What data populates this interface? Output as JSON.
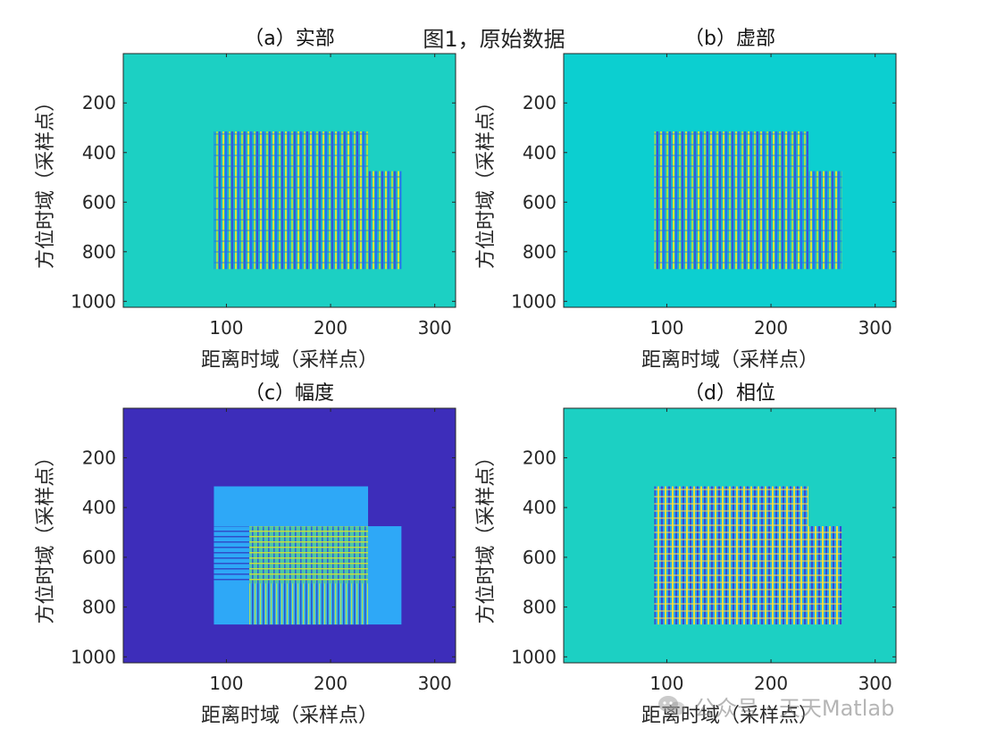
{
  "figure": {
    "suptitle": "图1，原始数据",
    "watermark": "公众号 · 天天Matlab"
  },
  "colors": {
    "bg_real": "#1cd0c3",
    "bg_imag": "#0ccfd0",
    "bg_amp": "#3d2dba",
    "amp_block": "#2ea8f7",
    "phase_bg": "#1cd0c3",
    "axis": "#262626"
  },
  "chart_data": [
    {
      "type": "heatmap",
      "title": "（a）实部",
      "xlabel": "距离时域（采样点）",
      "ylabel": "方位时域（采样点）",
      "xlim": [
        1,
        320
      ],
      "ylim": [
        1,
        1024
      ],
      "xticks": [
        100,
        200,
        300
      ],
      "yticks": [
        200,
        400,
        600,
        800,
        1000
      ],
      "y_reversed": true,
      "colormap": "parula",
      "regions": [
        {
          "x": [
            88,
            236
          ],
          "y": [
            315,
            475
          ],
          "pattern": "fringe"
        },
        {
          "x": [
            88,
            268
          ],
          "y": [
            475,
            870
          ],
          "pattern": "fringe"
        }
      ]
    },
    {
      "type": "heatmap",
      "title": "（b）虚部",
      "xlabel": "距离时域（采样点）",
      "ylabel": "方位时域（采样点）",
      "xlim": [
        1,
        320
      ],
      "ylim": [
        1,
        1024
      ],
      "xticks": [
        100,
        200,
        300
      ],
      "yticks": [
        200,
        400,
        600,
        800,
        1000
      ],
      "y_reversed": true,
      "colormap": "parula",
      "regions": [
        {
          "x": [
            88,
            236
          ],
          "y": [
            315,
            475
          ],
          "pattern": "fringe"
        },
        {
          "x": [
            88,
            268
          ],
          "y": [
            475,
            870
          ],
          "pattern": "fringe"
        }
      ]
    },
    {
      "type": "heatmap",
      "title": "（c）幅度",
      "xlabel": "距离时域（采样点）",
      "ylabel": "方位时域（采样点）",
      "xlim": [
        1,
        320
      ],
      "ylim": [
        1,
        1024
      ],
      "xticks": [
        100,
        200,
        300
      ],
      "yticks": [
        200,
        400,
        600,
        800,
        1000
      ],
      "y_reversed": true,
      "colormap": "parula",
      "regions": [
        {
          "x": [
            88,
            236
          ],
          "y": [
            315,
            475
          ],
          "pattern": "solid"
        },
        {
          "x": [
            88,
            268
          ],
          "y": [
            475,
            870
          ],
          "pattern": "solid"
        },
        {
          "x": [
            88,
            122
          ],
          "y": [
            475,
            705
          ],
          "pattern": "hstripes"
        },
        {
          "x": [
            122,
            236
          ],
          "y": [
            475,
            705
          ],
          "pattern": "grid"
        },
        {
          "x": [
            122,
            236
          ],
          "y": [
            705,
            870
          ],
          "pattern": "vstripes"
        }
      ]
    },
    {
      "type": "heatmap",
      "title": "（d）相位",
      "xlabel": "距离时域（采样点）",
      "ylabel": "方位时域（采样点）",
      "xlim": [
        1,
        320
      ],
      "ylim": [
        1,
        1024
      ],
      "xticks": [
        100,
        200,
        300
      ],
      "yticks": [
        200,
        400,
        600,
        800,
        1000
      ],
      "y_reversed": true,
      "colormap": "parula",
      "regions": [
        {
          "x": [
            88,
            236
          ],
          "y": [
            315,
            475
          ],
          "pattern": "phase"
        },
        {
          "x": [
            88,
            268
          ],
          "y": [
            475,
            870
          ],
          "pattern": "phase"
        }
      ]
    }
  ]
}
